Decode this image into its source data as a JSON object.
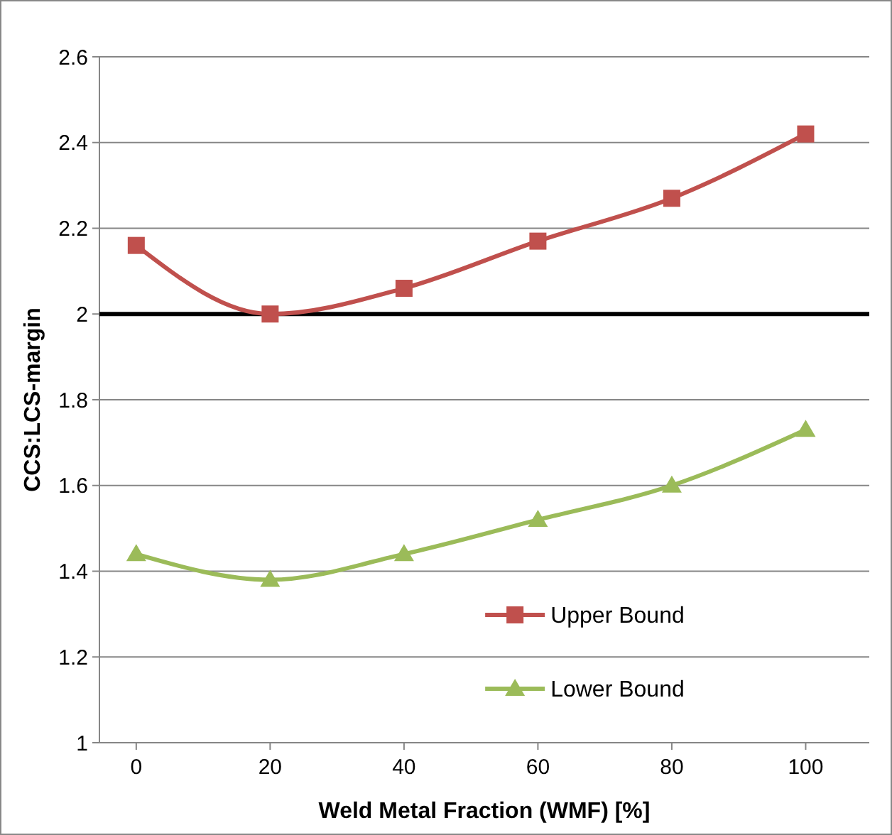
{
  "chart_data": {
    "type": "line",
    "xlabel": "Weld Metal Fraction (WMF) [%]",
    "ylabel": "CCS:LCS-margin",
    "x": [
      0,
      20,
      40,
      60,
      80,
      100
    ],
    "xlim": [
      -5.5,
      109.5
    ],
    "xticks": [
      0,
      20,
      40,
      60,
      80,
      100
    ],
    "ylim": [
      1,
      2.6
    ],
    "yticks": [
      {
        "value": 1,
        "label": "1"
      },
      {
        "value": 1.2,
        "label": "1.2"
      },
      {
        "value": 1.4,
        "label": "1.4"
      },
      {
        "value": 1.6,
        "label": "1.6"
      },
      {
        "value": 1.8,
        "label": "1.8"
      },
      {
        "value": 2,
        "label": "2"
      },
      {
        "value": 2.2,
        "label": "2.2"
      },
      {
        "value": 2.4,
        "label": "2.4"
      },
      {
        "value": 2.6,
        "label": "2.6"
      }
    ],
    "grid": "y",
    "legend": "bottom right",
    "series": [
      {
        "name": "Upper Bound",
        "color": "#c0504d",
        "marker": "square",
        "values": [
          2.16,
          2.0,
          2.06,
          2.17,
          2.27,
          2.42
        ]
      },
      {
        "name": "Lower Bound",
        "color": "#9bbb59",
        "marker": "triangle",
        "values": [
          1.44,
          1.38,
          1.44,
          1.52,
          1.6,
          1.73
        ]
      }
    ],
    "ref_lines": [
      {
        "axis": "y",
        "value": 2,
        "color": "#000000"
      }
    ]
  }
}
